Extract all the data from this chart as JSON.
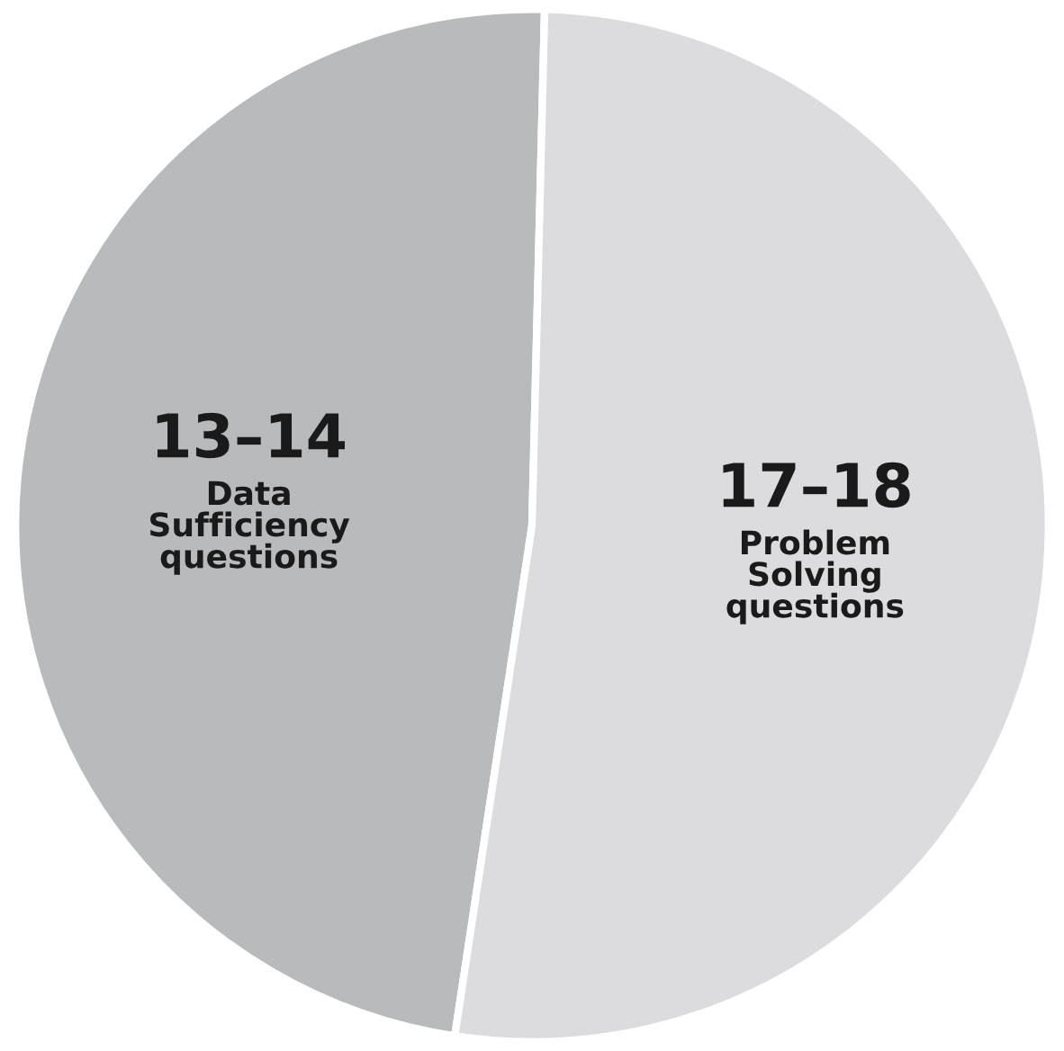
{
  "chart_data": {
    "type": "pie",
    "categories": [
      "Data\nSufficiency\nquestions",
      "Problem\nSolving\nquestions"
    ],
    "values": [
      48,
      52
    ],
    "value_labels": [
      "13–14",
      "17–18"
    ],
    "colors": [
      "#b9babc",
      "#dcdcde"
    ],
    "legend": false
  }
}
